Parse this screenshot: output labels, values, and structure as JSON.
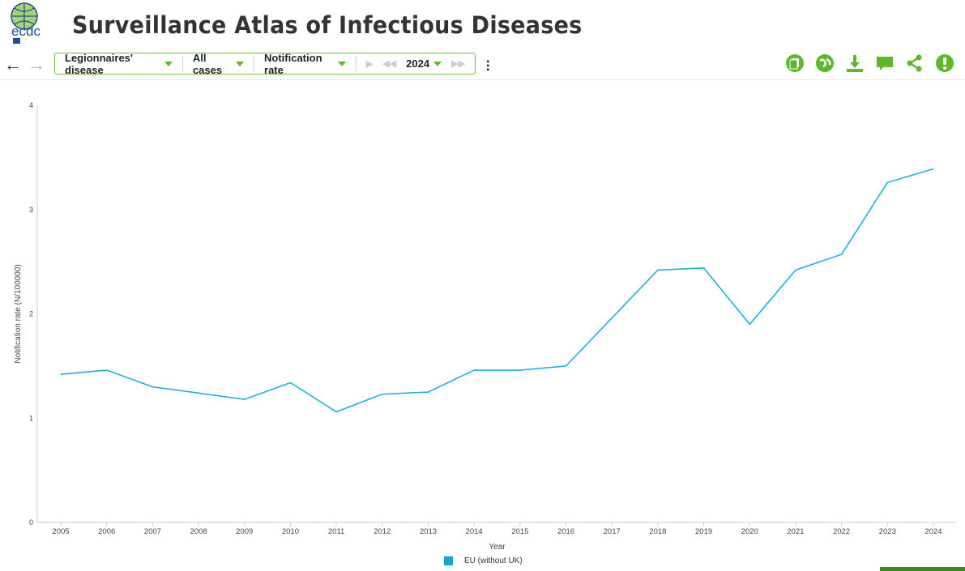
{
  "header": {
    "logo_text": "ecdc",
    "title": "Surveillance Atlas of Infectious Diseases"
  },
  "toolbar": {
    "disease": "Legionnaires' disease",
    "population": "All cases",
    "indicator": "Notification rate",
    "year": "2024"
  },
  "actions": [
    "report-icon",
    "globe-icon",
    "download-icon",
    "comment-icon",
    "share-icon",
    "alert-icon"
  ],
  "accent": "#5db82a",
  "chart_data": {
    "type": "line",
    "x": [
      2005,
      2006,
      2007,
      2008,
      2009,
      2010,
      2011,
      2012,
      2013,
      2014,
      2015,
      2016,
      2017,
      2018,
      2019,
      2020,
      2021,
      2022,
      2023,
      2024
    ],
    "series": [
      {
        "name": "EU (without UK)",
        "color": "#1aafe0",
        "values": [
          1.42,
          1.46,
          1.3,
          1.24,
          1.18,
          1.34,
          1.06,
          1.23,
          1.25,
          1.46,
          1.46,
          1.5,
          1.96,
          2.42,
          2.44,
          1.9,
          2.42,
          2.57,
          3.26,
          3.39
        ]
      }
    ],
    "xlabel": "Year",
    "ylabel": "Notification rate (N/100000)",
    "ylim": [
      0,
      4
    ],
    "yticks": [
      "0",
      "1",
      "2",
      "3",
      "4"
    ],
    "legend": "bottom-center"
  }
}
